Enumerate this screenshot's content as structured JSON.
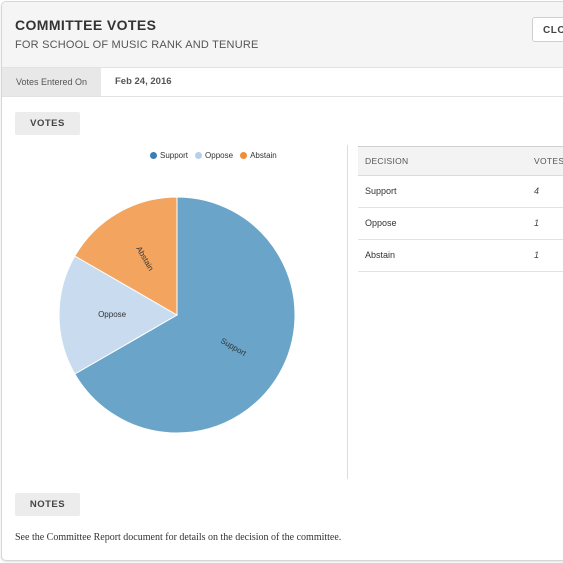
{
  "header": {
    "title": "COMMITTEE VOTES",
    "subtitle": "FOR SCHOOL OF MUSIC RANK AND TENURE",
    "close_label": "CLO"
  },
  "meta": {
    "label": "Votes Entered On",
    "value": "Feb 24, 2016"
  },
  "votes_section": {
    "label": "VOTES"
  },
  "notes_section": {
    "label": "NOTES",
    "text": "See the Committee Report document for details on the decision of the committee."
  },
  "colors": {
    "support": "#6aa4c9",
    "oppose": "#c9dbee",
    "abstain": "#f3a560",
    "support_legend": "#3a7fb3",
    "oppose_legend": "#b7d0ea",
    "abstain_legend": "#ef8d3a"
  },
  "table": {
    "headers": [
      "DECISION",
      "VOTES"
    ],
    "rows": [
      {
        "decision": "Support",
        "votes": "4"
      },
      {
        "decision": "Oppose",
        "votes": "1"
      },
      {
        "decision": "Abstain",
        "votes": "1"
      }
    ]
  },
  "chart_data": {
    "type": "pie",
    "categories": [
      "Support",
      "Oppose",
      "Abstain"
    ],
    "values": [
      4,
      1,
      1
    ],
    "legend": "top",
    "title": ""
  }
}
